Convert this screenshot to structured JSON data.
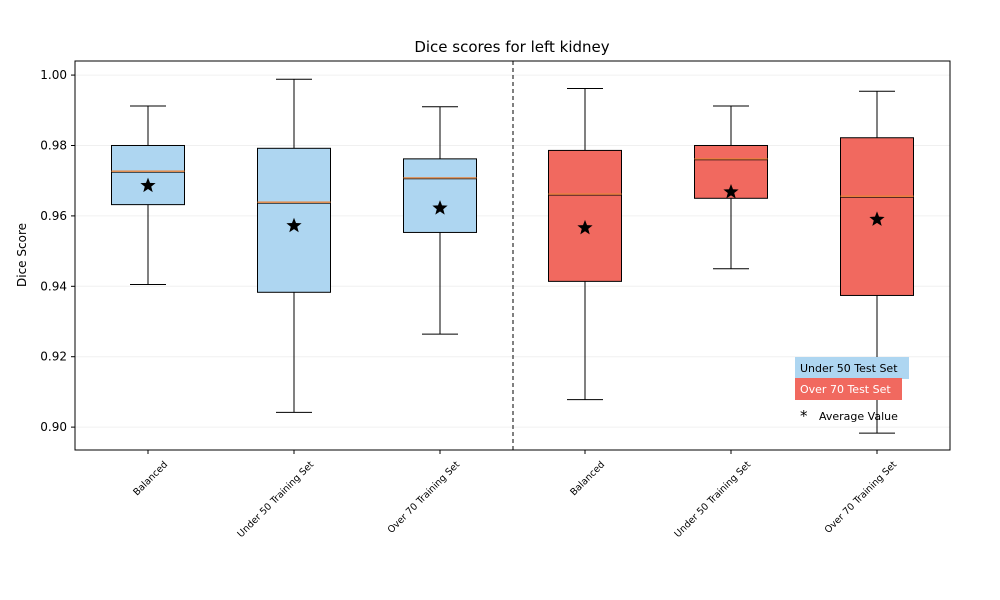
{
  "chart_data": {
    "type": "box",
    "title": "Dice scores for left kidney",
    "xlabel": "",
    "ylabel": "Dice Score",
    "ylim": [
      0.8935,
      1.004
    ],
    "yticks": [
      "0.90",
      "0.92",
      "0.94",
      "0.96",
      "0.98",
      "1.00"
    ],
    "ytick_values": [
      0.9,
      0.92,
      0.94,
      0.96,
      0.98,
      1.0
    ],
    "grid": true,
    "divider_after_index": 2,
    "categories": [
      "Balanced",
      "Under 50 Training Set",
      "Over 70 Training Set",
      "Balanced",
      "Under 50 Training Set",
      "Over 70 Training Set"
    ],
    "series": [
      {
        "name": "Under 50 Test Set",
        "color": "#aed6f1",
        "boxes": [
          {
            "whisker_low": 0.9405,
            "q1": 0.9632,
            "median": 0.9727,
            "q3": 0.98,
            "whisker_high": 0.9912,
            "mean": 0.9686
          },
          {
            "whisker_low": 0.9042,
            "q1": 0.9383,
            "median": 0.9639,
            "q3": 0.9792,
            "whisker_high": 0.9988,
            "mean": 0.9572
          },
          {
            "whisker_low": 0.9264,
            "q1": 0.9553,
            "median": 0.9708,
            "q3": 0.9762,
            "whisker_high": 0.991,
            "mean": 0.9622
          }
        ]
      },
      {
        "name": "Over 70 Test Set",
        "color": "#f1695f",
        "boxes": [
          {
            "whisker_low": 0.9078,
            "q1": 0.9414,
            "median": 0.9662,
            "q3": 0.9786,
            "whisker_high": 0.9962,
            "mean": 0.9566
          },
          {
            "whisker_low": 0.945,
            "q1": 0.965,
            "median": 0.9762,
            "q3": 0.98,
            "whisker_high": 0.9912,
            "mean": 0.9668
          },
          {
            "whisker_low": 0.8983,
            "q1": 0.9374,
            "median": 0.9656,
            "q3": 0.9822,
            "whisker_high": 0.9954,
            "mean": 0.959
          }
        ]
      }
    ],
    "legend": {
      "placement": "lower-right",
      "entries": [
        "Under 50 Test Set",
        "Over 70 Test Set"
      ],
      "marker_symbol": "*",
      "marker_label": "Average Value"
    },
    "median_color": "#e8833a"
  }
}
